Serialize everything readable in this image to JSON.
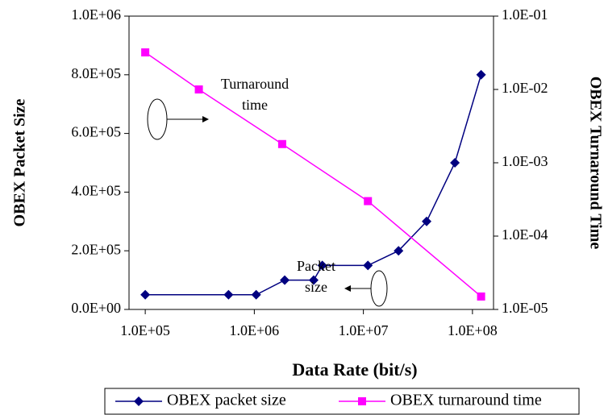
{
  "chart_data": {
    "type": "line",
    "xlabel": "Data Rate (bit/s)",
    "ylabel": "OBEX Packet Size",
    "y2label": "OBEX Turnaround Time",
    "xscale": "log",
    "y2scale": "log",
    "xlim": [
      71000,
      156000000
    ],
    "ylim": [
      0,
      1000000
    ],
    "y2lim": [
      1e-05,
      0.1
    ],
    "xticks": [
      {
        "value": 100000,
        "label": "1.0E+05"
      },
      {
        "value": 1000000,
        "label": "1.0E+06"
      },
      {
        "value": 10000000,
        "label": "1.0E+07"
      },
      {
        "value": 100000000,
        "label": "1.0E+08"
      }
    ],
    "yticks": [
      {
        "value": 0,
        "label": "0.0E+00"
      },
      {
        "value": 200000,
        "label": "2.0E+05"
      },
      {
        "value": 400000,
        "label": "4.0E+05"
      },
      {
        "value": 600000,
        "label": "6.0E+05"
      },
      {
        "value": 800000,
        "label": "8.0E+05"
      },
      {
        "value": 1000000,
        "label": "1.0E+06"
      }
    ],
    "y2ticks": [
      {
        "value": 1e-05,
        "label": "1.0E-05"
      },
      {
        "value": 0.0001,
        "label": "1.0E-04"
      },
      {
        "value": 0.001,
        "label": "1.0E-03"
      },
      {
        "value": 0.01,
        "label": "1.0E-02"
      },
      {
        "value": 0.1,
        "label": "1.0E-01"
      }
    ],
    "legend": "bottom",
    "series": [
      {
        "name": "OBEX packet size",
        "color": "#000080",
        "marker": "diamond",
        "x": [
          100000,
          580000,
          1040000,
          1900000,
          3500000,
          4200000,
          11000000,
          21000000,
          38000000,
          69000000,
          120000000
        ],
        "values": [
          50000,
          50000,
          50000,
          100000,
          100000,
          150000,
          150000,
          200000,
          300000,
          500000,
          800000
        ]
      },
      {
        "name": "OBEX turnaround time",
        "color": "#ff00ff",
        "marker": "square",
        "axis": "y2",
        "x": [
          100000,
          310000,
          1800000,
          11000000,
          120000000
        ],
        "values": [
          0.032,
          0.01,
          0.0018,
          0.0003,
          1.5e-05
        ]
      }
    ],
    "annotations": [
      {
        "lines": [
          "Turnaround",
          "time"
        ]
      },
      {
        "lines": [
          "Packet",
          "size"
        ]
      }
    ]
  }
}
